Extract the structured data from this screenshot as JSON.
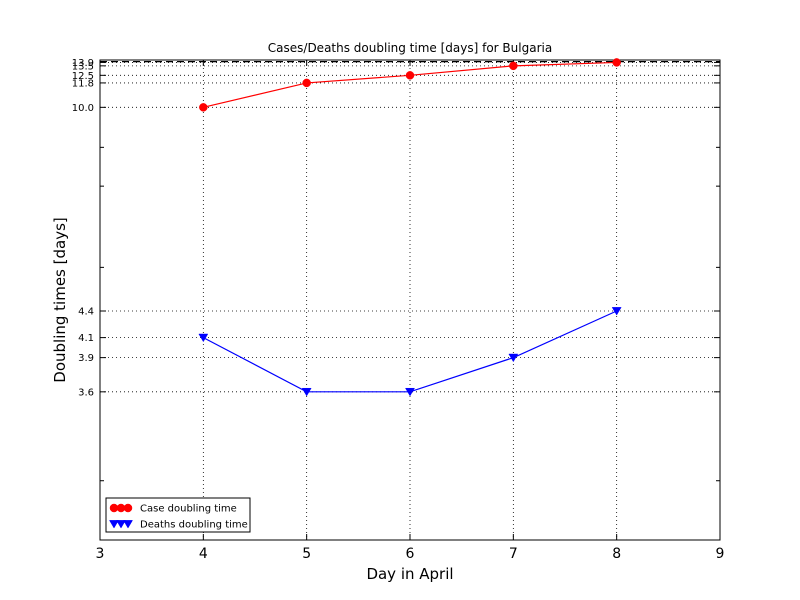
{
  "chart_data": {
    "type": "line",
    "title": "Cases/Deaths doubling time [days] for Bulgaria",
    "xlabel": "Day in April",
    "ylabel": "Doubling times [days]",
    "xlim": [
      3,
      9
    ],
    "ylim": [
      2.7,
      14.2
    ],
    "x_ticks": [
      3,
      4,
      5,
      6,
      7,
      8,
      9
    ],
    "y_tick_labels": [
      3.6,
      3.9,
      4.1,
      4.4,
      10.0,
      11.8,
      12.5,
      13.5,
      13.9
    ],
    "y_minor_ticks": [
      8.0,
      6.7,
      5.0,
      3.0
    ],
    "grid": true,
    "legend_position": "lower-left",
    "reference_line": {
      "y": 14.0,
      "style": "dashed"
    },
    "series": [
      {
        "name": "Case doubling time",
        "color": "#ff0000",
        "marker": "circle",
        "x": [
          4,
          5,
          6,
          7,
          8
        ],
        "y": [
          10.0,
          11.8,
          12.5,
          13.5,
          13.9
        ]
      },
      {
        "name": "Deaths doubling time",
        "color": "#0000ff",
        "marker": "triangle-down",
        "x": [
          4,
          5,
          6,
          7,
          8
        ],
        "y": [
          4.1,
          3.6,
          3.6,
          3.9,
          4.4
        ]
      }
    ]
  }
}
